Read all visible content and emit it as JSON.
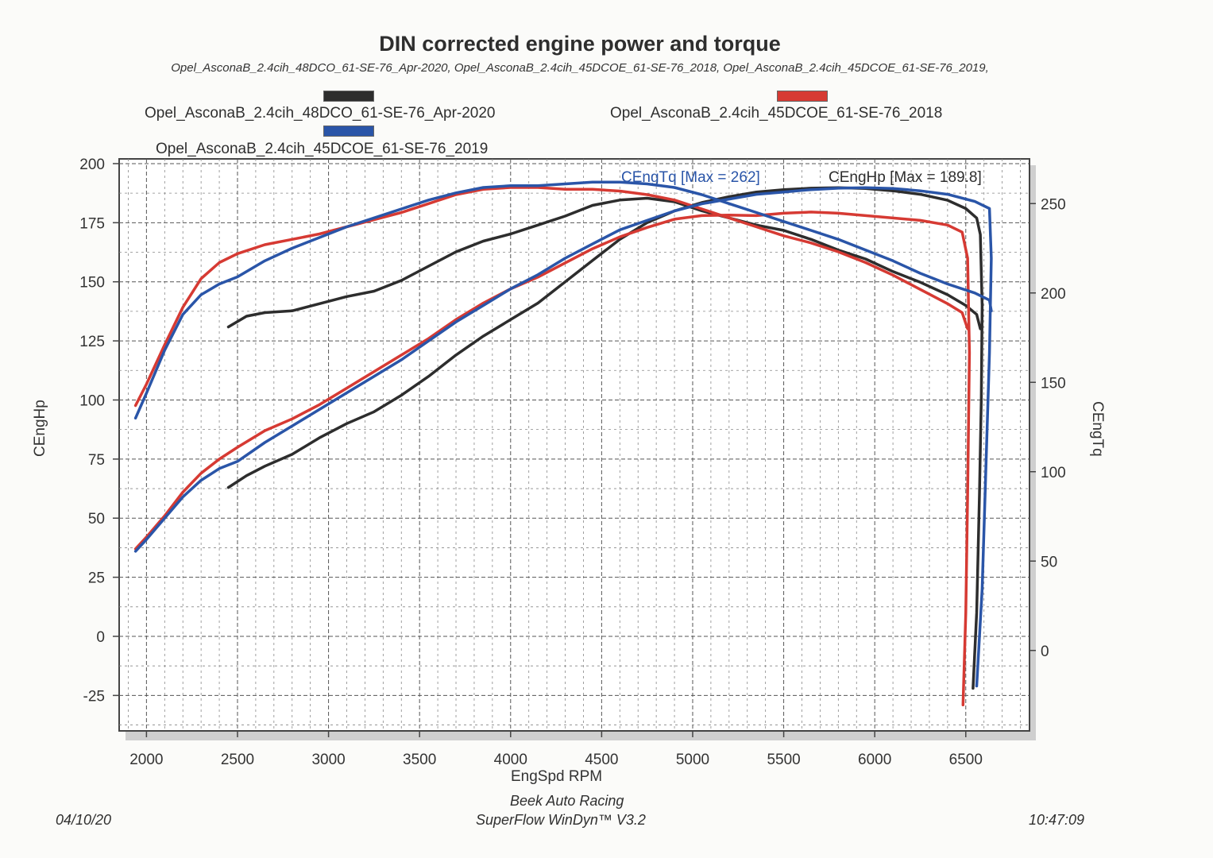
{
  "chart_data": {
    "type": "line",
    "title": "DIN corrected engine power and torque",
    "subtitle": "Opel_AsconaB_2.4cih_48DCO_61-SE-76_Apr-2020, Opel_AsconaB_2.4cih_45DCOE_61-SE-76_2018, Opel_AsconaB_2.4cih_45DCOE_61-SE-76_2019,",
    "xlabel": "EngSpd RPM",
    "ylabel_left": "CEngHp",
    "ylabel_right": "CEngTq",
    "xlim": [
      1850,
      6850
    ],
    "ylim_left": [
      -40,
      202
    ],
    "ylim_right": [
      -45,
      275
    ],
    "x_ticks": [
      2000,
      2500,
      3000,
      3500,
      4000,
      4500,
      5000,
      5500,
      6000,
      6500
    ],
    "y_ticks_left": [
      200,
      175,
      150,
      125,
      100,
      75,
      50,
      25,
      0,
      -25
    ],
    "y_ticks_right": [
      250,
      200,
      150,
      100,
      50,
      0
    ],
    "grid": true,
    "legend_position": "top",
    "annotations": {
      "torque_max": "CEngTq [Max = 262]",
      "power_max": "CEngHp [Max = 189.8]"
    },
    "series": [
      {
        "name": "Opel_AsconaB_2.4cih_48DCO_61-SE-76_Apr-2020",
        "color": "#2d2d2d",
        "hp": [
          [
            2450,
            63
          ],
          [
            2550,
            68
          ],
          [
            2650,
            72
          ],
          [
            2800,
            77
          ],
          [
            2950,
            84
          ],
          [
            3100,
            90
          ],
          [
            3250,
            95
          ],
          [
            3400,
            102
          ],
          [
            3550,
            110
          ],
          [
            3700,
            119
          ],
          [
            3850,
            127
          ],
          [
            4000,
            134
          ],
          [
            4150,
            141
          ],
          [
            4300,
            150
          ],
          [
            4450,
            159
          ],
          [
            4600,
            168
          ],
          [
            4750,
            175
          ],
          [
            4900,
            180
          ],
          [
            5050,
            183.5
          ],
          [
            5200,
            186
          ],
          [
            5350,
            188
          ],
          [
            5500,
            189
          ],
          [
            5650,
            189.6
          ],
          [
            5800,
            189.8
          ],
          [
            5950,
            189.5
          ],
          [
            6100,
            188.5
          ],
          [
            6250,
            187
          ],
          [
            6400,
            184.5
          ],
          [
            6500,
            181
          ],
          [
            6560,
            177
          ],
          [
            6580,
            170
          ],
          [
            6590,
            140
          ],
          [
            6585,
            100
          ],
          [
            6575,
            60
          ],
          [
            6560,
            10
          ],
          [
            6540,
            -22
          ]
        ],
        "tq": [
          [
            2450,
            181
          ],
          [
            2550,
            187
          ],
          [
            2650,
            189
          ],
          [
            2800,
            190
          ],
          [
            2950,
            194
          ],
          [
            3100,
            198
          ],
          [
            3250,
            201
          ],
          [
            3400,
            207
          ],
          [
            3550,
            215
          ],
          [
            3700,
            223
          ],
          [
            3850,
            229
          ],
          [
            4000,
            233
          ],
          [
            4150,
            238
          ],
          [
            4300,
            243
          ],
          [
            4450,
            249
          ],
          [
            4600,
            252
          ],
          [
            4750,
            253
          ],
          [
            4900,
            251
          ],
          [
            5050,
            246
          ],
          [
            5200,
            242
          ],
          [
            5350,
            238
          ],
          [
            5500,
            235
          ],
          [
            5650,
            230
          ],
          [
            5800,
            224
          ],
          [
            5950,
            219
          ],
          [
            6100,
            212
          ],
          [
            6250,
            206
          ],
          [
            6400,
            199
          ],
          [
            6500,
            193
          ],
          [
            6560,
            188
          ],
          [
            6580,
            180
          ]
        ]
      },
      {
        "name": "Opel_AsconaB_2.4cih_45DCOE_61-SE-76_2018",
        "color": "#d63a33",
        "hp": [
          [
            1940,
            37
          ],
          [
            2000,
            42
          ],
          [
            2100,
            51
          ],
          [
            2200,
            61
          ],
          [
            2300,
            69
          ],
          [
            2400,
            75
          ],
          [
            2500,
            80
          ],
          [
            2650,
            87
          ],
          [
            2800,
            92
          ],
          [
            2950,
            98
          ],
          [
            3100,
            105
          ],
          [
            3250,
            112
          ],
          [
            3400,
            119
          ],
          [
            3550,
            126
          ],
          [
            3700,
            134
          ],
          [
            3850,
            141
          ],
          [
            4000,
            147
          ],
          [
            4150,
            152
          ],
          [
            4300,
            158
          ],
          [
            4450,
            164
          ],
          [
            4600,
            169
          ],
          [
            4750,
            173
          ],
          [
            4900,
            176.5
          ],
          [
            5050,
            178
          ],
          [
            5200,
            178.2
          ],
          [
            5350,
            178
          ],
          [
            5500,
            179
          ],
          [
            5650,
            179.5
          ],
          [
            5800,
            179
          ],
          [
            5950,
            178
          ],
          [
            6100,
            177
          ],
          [
            6250,
            176
          ],
          [
            6400,
            174
          ],
          [
            6480,
            171
          ],
          [
            6510,
            160
          ],
          [
            6520,
            120
          ],
          [
            6510,
            60
          ],
          [
            6500,
            10
          ],
          [
            6485,
            -29
          ]
        ],
        "tq": [
          [
            1940,
            137
          ],
          [
            2000,
            149
          ],
          [
            2100,
            171
          ],
          [
            2200,
            192
          ],
          [
            2300,
            208
          ],
          [
            2400,
            217
          ],
          [
            2500,
            222
          ],
          [
            2650,
            227
          ],
          [
            2800,
            230
          ],
          [
            2950,
            233
          ],
          [
            3100,
            237
          ],
          [
            3250,
            241
          ],
          [
            3400,
            245
          ],
          [
            3550,
            250
          ],
          [
            3700,
            255
          ],
          [
            3850,
            258
          ],
          [
            4000,
            259
          ],
          [
            4150,
            259
          ],
          [
            4300,
            258
          ],
          [
            4450,
            258
          ],
          [
            4600,
            257
          ],
          [
            4750,
            255
          ],
          [
            4900,
            252
          ],
          [
            5050,
            247
          ],
          [
            5200,
            242
          ],
          [
            5350,
            237
          ],
          [
            5500,
            232
          ],
          [
            5650,
            228
          ],
          [
            5800,
            223
          ],
          [
            5950,
            217
          ],
          [
            6100,
            210
          ],
          [
            6250,
            202
          ],
          [
            6400,
            194
          ],
          [
            6480,
            189
          ],
          [
            6510,
            180
          ]
        ]
      },
      {
        "name": "Opel_AsconaB_2.4cih_45DCOE_61-SE-76_2019",
        "color": "#2a55a8",
        "hp": [
          [
            1940,
            36
          ],
          [
            2000,
            41
          ],
          [
            2100,
            50
          ],
          [
            2200,
            59
          ],
          [
            2300,
            66
          ],
          [
            2400,
            71
          ],
          [
            2500,
            74
          ],
          [
            2650,
            82
          ],
          [
            2800,
            89
          ],
          [
            2950,
            96
          ],
          [
            3100,
            103
          ],
          [
            3250,
            110
          ],
          [
            3400,
            117
          ],
          [
            3550,
            125
          ],
          [
            3700,
            133
          ],
          [
            3850,
            140
          ],
          [
            4000,
            147
          ],
          [
            4150,
            153
          ],
          [
            4300,
            160
          ],
          [
            4450,
            166
          ],
          [
            4600,
            172
          ],
          [
            4750,
            176
          ],
          [
            4900,
            180
          ],
          [
            5050,
            183
          ],
          [
            5200,
            185
          ],
          [
            5350,
            187
          ],
          [
            5500,
            188
          ],
          [
            5650,
            189
          ],
          [
            5800,
            189.6
          ],
          [
            5950,
            189.8
          ],
          [
            6100,
            189.5
          ],
          [
            6250,
            188.5
          ],
          [
            6400,
            187
          ],
          [
            6550,
            184
          ],
          [
            6630,
            181
          ],
          [
            6640,
            160
          ],
          [
            6630,
            120
          ],
          [
            6610,
            70
          ],
          [
            6590,
            20
          ],
          [
            6560,
            -21
          ]
        ],
        "tq": [
          [
            1940,
            130
          ],
          [
            2000,
            144
          ],
          [
            2100,
            168
          ],
          [
            2200,
            188
          ],
          [
            2300,
            199
          ],
          [
            2400,
            205
          ],
          [
            2500,
            209
          ],
          [
            2650,
            218
          ],
          [
            2800,
            225
          ],
          [
            2950,
            231
          ],
          [
            3100,
            237
          ],
          [
            3250,
            242
          ],
          [
            3400,
            247
          ],
          [
            3550,
            252
          ],
          [
            3700,
            256
          ],
          [
            3850,
            259
          ],
          [
            4000,
            260
          ],
          [
            4150,
            260
          ],
          [
            4300,
            261
          ],
          [
            4450,
            262
          ],
          [
            4600,
            262
          ],
          [
            4750,
            261
          ],
          [
            4900,
            259
          ],
          [
            5050,
            255
          ],
          [
            5200,
            250
          ],
          [
            5350,
            245
          ],
          [
            5500,
            240
          ],
          [
            5650,
            235
          ],
          [
            5800,
            230
          ],
          [
            5950,
            224
          ],
          [
            6100,
            218
          ],
          [
            6250,
            211
          ],
          [
            6400,
            205
          ],
          [
            6550,
            200
          ],
          [
            6630,
            196
          ],
          [
            6640,
            190
          ]
        ]
      }
    ]
  },
  "footer": {
    "company": "Beek Auto Racing",
    "software": "SuperFlow WinDyn™ V3.2",
    "date": "04/10/20",
    "time": "10:47:09"
  }
}
